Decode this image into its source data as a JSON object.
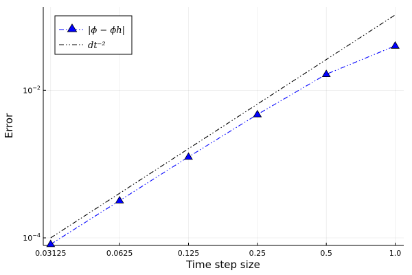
{
  "chart_data": {
    "type": "line",
    "xlabel": "Time step size",
    "ylabel": "Error",
    "x_scale": "log2",
    "y_scale": "log10",
    "grid": true,
    "legend_placement": "top-left",
    "xlim": [
      0.029,
      1.09
    ],
    "ylim": [
      7.9e-05,
      0.135
    ],
    "x_ticks": [
      {
        "value": 0.03125,
        "label": "0.03125"
      },
      {
        "value": 0.0625,
        "label": "0.0625"
      },
      {
        "value": 0.125,
        "label": "0.125"
      },
      {
        "value": 0.25,
        "label": "0.25"
      },
      {
        "value": 0.5,
        "label": "0.5"
      },
      {
        "value": 1.0,
        "label": "1.0"
      }
    ],
    "y_ticks": [
      {
        "value": 0.0001,
        "base": "10",
        "exp": "−4"
      },
      {
        "value": 0.01,
        "base": "10",
        "exp": "−2"
      }
    ],
    "series": [
      {
        "name": "|ϕ − ϕh|",
        "color": "#0000ff",
        "marker_color": "#0000ff",
        "marker": "triangle",
        "line_style": "dash-dot-dot",
        "x": [
          0.03125,
          0.0625,
          0.125,
          0.25,
          0.5,
          1.0
        ],
        "y": [
          8.2e-05,
          0.00032,
          0.00125,
          0.0047,
          0.0165,
          0.04
        ]
      },
      {
        "name": "dt⁻²",
        "color": "#000000",
        "line_style": "dash-dot-dot",
        "x": [
          0.03125,
          1.0
        ],
        "y": [
          0.0001,
          0.105
        ]
      }
    ]
  }
}
